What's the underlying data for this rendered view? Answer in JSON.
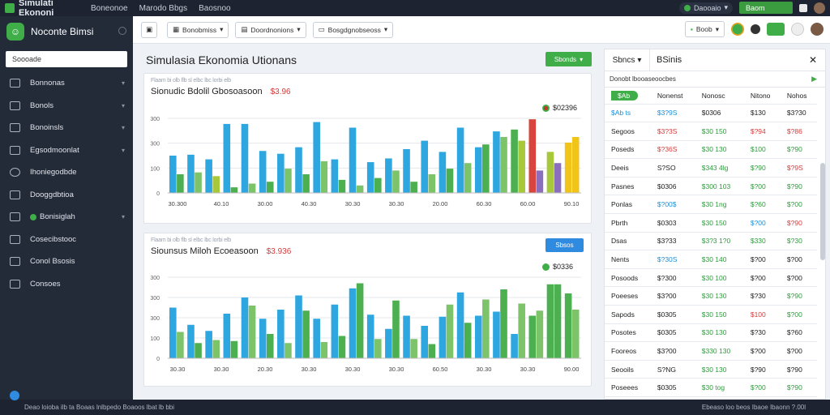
{
  "app": {
    "title": "Simulati Ekononi"
  },
  "top_menu": [
    "Boneonoe",
    "Marodo Bbgs",
    "Baosnoo"
  ],
  "top_right": {
    "status": "Daooaio",
    "button": "Baom"
  },
  "sidebar": {
    "title": "Noconte Bimsi",
    "search_placeholder": "Soooade",
    "items": [
      {
        "label": "Bonnonas"
      },
      {
        "label": "Bonols"
      },
      {
        "label": "Bonoinsls"
      },
      {
        "label": "Egsodmoonlat"
      },
      {
        "label": "Ihoniegodbde"
      },
      {
        "label": "Dooggdbtioa"
      },
      {
        "label": "Bonisiglah"
      },
      {
        "label": "Cosecibstooc"
      },
      {
        "label": "Conol Bsosis"
      },
      {
        "label": "Consoes"
      }
    ]
  },
  "toolbar": {
    "dropdown1": "Bonobmiss",
    "dropdown2": "Doordnonions",
    "dropdown3": "Bosgdgnobseoss",
    "right_pill": "Boob"
  },
  "page": {
    "title": "Simulasia Ekonomia Utionans",
    "action_button": "Sbonds"
  },
  "chart1": {
    "subtitle": "Flaam bi olb flb sl elbc lbc lorbi elb",
    "title": "Sionudic Bdolil Gbosoasoon",
    "title_value": "$3.96",
    "legend_value": "$02396",
    "legend_note": "ĀĀ"
  },
  "chart2": {
    "subtitle": "Flaam bi olb flb sl elbc lbc lorbi elb",
    "title": "Siounsus Miloh Ecoeasoon",
    "title_value": "$3.936",
    "legend_value": "$0336",
    "button": "Sbsos"
  },
  "right_panel": {
    "tab": "Sbncs",
    "title": "BSinis",
    "subheader": "Donobt lbooaseoocbes",
    "header": [
      "$Ab",
      "Nonenst",
      "Nonosc",
      "Nitono",
      "Nohos"
    ],
    "rows": [
      {
        "c1": "$Ab ts",
        "c2": "$3?9S",
        "c3": "$0306",
        "c4": "$130",
        "c5": "$3?30",
        "k1": "blue",
        "k2": "blue",
        "k3": "",
        "k4": "",
        "k5": ""
      },
      {
        "c1": "Segoos",
        "c2": "$3?3S",
        "c3": "$30 150",
        "c4": "$?94",
        "c5": "$?86",
        "k1": "",
        "k2": "red",
        "k3": "green",
        "k4": "red",
        "k5": "red"
      },
      {
        "c1": "Poseds",
        "c2": "$?36S",
        "c3": "$30 130",
        "c4": "$100",
        "c5": "$?90",
        "k1": "",
        "k2": "red",
        "k3": "green",
        "k4": "green",
        "k5": "green"
      },
      {
        "c1": "Deeis",
        "c2": "S?SO",
        "c3": "$343 4lg",
        "c4": "$?90",
        "c5": "$?9S",
        "k1": "",
        "k2": "",
        "k3": "green",
        "k4": "green",
        "k5": "red"
      },
      {
        "c1": "Pasnes",
        "c2": "$0306",
        "c3": "$300 103",
        "c4": "$?00",
        "c5": "$?90",
        "k1": "",
        "k2": "",
        "k3": "green",
        "k4": "green",
        "k5": "green"
      },
      {
        "c1": "Ponlas",
        "c2": "$?00$",
        "c3": "$30 1ng",
        "c4": "$?60",
        "c5": "$?00",
        "k1": "",
        "k2": "blue",
        "k3": "green",
        "k4": "green",
        "k5": "green"
      },
      {
        "c1": "Pbrth",
        "c2": "$0303",
        "c3": "$30 150",
        "c4": "$?00",
        "c5": "$?90",
        "k1": "",
        "k2": "",
        "k3": "green",
        "k4": "blue",
        "k5": "red"
      },
      {
        "c1": "Dsas",
        "c2": "$3?33",
        "c3": "$3?3 1?0",
        "c4": "$330",
        "c5": "$?30",
        "k1": "",
        "k2": "",
        "k3": "green",
        "k4": "green",
        "k5": "green"
      },
      {
        "c1": "Nents",
        "c2": "$?30S",
        "c3": "$30 140",
        "c4": "$?00",
        "c5": "$?00",
        "k1": "",
        "k2": "blue",
        "k3": "green",
        "k4": "",
        "k5": ""
      },
      {
        "c1": "Posoods",
        "c2": "$?300",
        "c3": "$30 100",
        "c4": "$?00",
        "c5": "$?00",
        "k1": "",
        "k2": "",
        "k3": "green",
        "k4": "",
        "k5": ""
      },
      {
        "c1": "Poeeses",
        "c2": "$3?00",
        "c3": "$30 130",
        "c4": "$?30",
        "c5": "$?90",
        "k1": "",
        "k2": "",
        "k3": "green",
        "k4": "",
        "k5": "green"
      },
      {
        "c1": "Sapods",
        "c2": "$0305",
        "c3": "$30 150",
        "c4": "$100",
        "c5": "$?00",
        "k1": "",
        "k2": "",
        "k3": "green",
        "k4": "red",
        "k5": "green"
      },
      {
        "c1": "Posotes",
        "c2": "$0305",
        "c3": "$30 130",
        "c4": "$?30",
        "c5": "$?60",
        "k1": "",
        "k2": "",
        "k3": "green",
        "k4": "",
        "k5": ""
      },
      {
        "c1": "Fooreos",
        "c2": "$3?00",
        "c3": "$330 130",
        "c4": "$?00",
        "c5": "$?00",
        "k1": "",
        "k2": "",
        "k3": "green",
        "k4": "",
        "k5": ""
      },
      {
        "c1": "Seooils",
        "c2": "S?NG",
        "c3": "$30 130",
        "c4": "$?90",
        "c5": "$?90",
        "k1": "",
        "k2": "",
        "k3": "green",
        "k4": "",
        "k5": ""
      },
      {
        "c1": "Poseees",
        "c2": "$0305",
        "c3": "$30 tog",
        "c4": "$?00",
        "c5": "$?90",
        "k1": "",
        "k2": "",
        "k3": "green",
        "k4": "green",
        "k5": "green"
      },
      {
        "c1": "Eoolds",
        "c2": "$0303",
        "c3": "",
        "c4": "",
        "c5": "",
        "k1": "",
        "k2": "",
        "k3": "",
        "k4": "",
        "k5": ""
      }
    ]
  },
  "statusbar": {
    "left": "Deao loioba ilb ta Boaas   lnlbpedo Boaoos lbat lb bbi",
    "right": "Ebeaso loo beos Ibaoe Ibaonn  ?.00l"
  },
  "colors": {
    "blue": "#2ea6e0",
    "green": "#4caf50",
    "lightgreen": "#7cc36a",
    "olive": "#a6c83a",
    "red": "#d9443c",
    "yellow": "#f0c419",
    "purple": "#8b6fbd",
    "gray": "#b0b5bd"
  },
  "chart_data": [
    {
      "type": "bar",
      "title": "Sionudic Bdolil Gbosoasoon",
      "ylim": [
        0,
        400
      ],
      "yticks": [
        "0",
        "100",
        "300",
        "300"
      ],
      "xlabels": [
        "30.300",
        "40.10",
        "30.00",
        "40.30",
        "30.30",
        "30.30",
        "20.00",
        "60.30",
        "60.00",
        "90.10"
      ],
      "groups": [
        [
          {
            "v": 200,
            "c": "blue"
          },
          {
            "v": 100,
            "c": "green"
          }
        ],
        [
          {
            "v": 205,
            "c": "blue"
          },
          {
            "v": 110,
            "c": "lightgreen"
          }
        ],
        [
          {
            "v": 180,
            "c": "blue"
          },
          {
            "v": 90,
            "c": "olive"
          }
        ],
        [
          {
            "v": 370,
            "c": "blue"
          },
          {
            "v": 30,
            "c": "green"
          }
        ],
        [
          {
            "v": 370,
            "c": "blue"
          },
          {
            "v": 50,
            "c": "lightgreen"
          }
        ],
        [
          {
            "v": 225,
            "c": "blue"
          },
          {
            "v": 60,
            "c": "green"
          }
        ],
        [
          {
            "v": 210,
            "c": "blue"
          },
          {
            "v": 130,
            "c": "lightgreen"
          }
        ],
        [
          {
            "v": 245,
            "c": "blue"
          },
          {
            "v": 100,
            "c": "green"
          }
        ],
        [
          {
            "v": 380,
            "c": "blue"
          },
          {
            "v": 170,
            "c": "lightgreen"
          }
        ],
        [
          {
            "v": 180,
            "c": "blue"
          },
          {
            "v": 70,
            "c": "green"
          }
        ],
        [
          {
            "v": 350,
            "c": "blue"
          },
          {
            "v": 40,
            "c": "lightgreen"
          }
        ],
        [
          {
            "v": 165,
            "c": "blue"
          },
          {
            "v": 80,
            "c": "green"
          }
        ],
        [
          {
            "v": 185,
            "c": "blue"
          },
          {
            "v": 120,
            "c": "lightgreen"
          }
        ],
        [
          {
            "v": 235,
            "c": "blue"
          },
          {
            "v": 60,
            "c": "green"
          }
        ],
        [
          {
            "v": 280,
            "c": "blue"
          },
          {
            "v": 100,
            "c": "lightgreen"
          }
        ],
        [
          {
            "v": 220,
            "c": "blue"
          },
          {
            "v": 130,
            "c": "green"
          }
        ],
        [
          {
            "v": 350,
            "c": "blue"
          },
          {
            "v": 160,
            "c": "lightgreen"
          }
        ],
        [
          {
            "v": 245,
            "c": "blue"
          },
          {
            "v": 260,
            "c": "green"
          }
        ],
        [
          {
            "v": 330,
            "c": "blue"
          },
          {
            "v": 300,
            "c": "lightgreen"
          }
        ],
        [
          {
            "v": 340,
            "c": "green"
          },
          {
            "v": 280,
            "c": "olive"
          }
        ],
        [
          {
            "v": 395,
            "c": "red"
          },
          {
            "v": 120,
            "c": "purple"
          }
        ],
        [
          {
            "v": 220,
            "c": "olive"
          },
          {
            "v": 160,
            "c": "purple"
          }
        ],
        [
          {
            "v": 270,
            "c": "yellow"
          },
          {
            "v": 300,
            "c": "yellow"
          }
        ]
      ]
    },
    {
      "type": "bar",
      "title": "Siounsus Miloh Ecoeasoon",
      "ylim": [
        0,
        400
      ],
      "yticks": [
        "0",
        "100",
        "300",
        "300",
        "300"
      ],
      "xlabels": [
        "30.30",
        "30.30",
        "20.30",
        "30.30",
        "30.30",
        "30.30",
        "60.50",
        "30.30",
        "30.30",
        "90.00"
      ],
      "groups": [
        [
          {
            "v": 250,
            "c": "blue"
          },
          {
            "v": 130,
            "c": "lightgreen"
          }
        ],
        [
          {
            "v": 165,
            "c": "blue"
          },
          {
            "v": 75,
            "c": "green"
          }
        ],
        [
          {
            "v": 135,
            "c": "blue"
          },
          {
            "v": 90,
            "c": "lightgreen"
          }
        ],
        [
          {
            "v": 220,
            "c": "blue"
          },
          {
            "v": 85,
            "c": "green"
          }
        ],
        [
          {
            "v": 300,
            "c": "blue"
          },
          {
            "v": 260,
            "c": "lightgreen"
          }
        ],
        [
          {
            "v": 195,
            "c": "blue"
          },
          {
            "v": 120,
            "c": "green"
          }
        ],
        [
          {
            "v": 240,
            "c": "blue"
          },
          {
            "v": 75,
            "c": "lightgreen"
          }
        ],
        [
          {
            "v": 310,
            "c": "blue"
          },
          {
            "v": 235,
            "c": "green"
          }
        ],
        [
          {
            "v": 195,
            "c": "blue"
          },
          {
            "v": 80,
            "c": "lightgreen"
          }
        ],
        [
          {
            "v": 265,
            "c": "blue"
          },
          {
            "v": 110,
            "c": "green"
          }
        ],
        [
          {
            "v": 345,
            "c": "blue"
          },
          {
            "v": 370,
            "c": "green"
          }
        ],
        [
          {
            "v": 215,
            "c": "blue"
          },
          {
            "v": 95,
            "c": "lightgreen"
          }
        ],
        [
          {
            "v": 145,
            "c": "blue"
          },
          {
            "v": 285,
            "c": "green"
          }
        ],
        [
          {
            "v": 210,
            "c": "blue"
          },
          {
            "v": 95,
            "c": "lightgreen"
          }
        ],
        [
          {
            "v": 160,
            "c": "blue"
          },
          {
            "v": 70,
            "c": "green"
          }
        ],
        [
          {
            "v": 205,
            "c": "blue"
          },
          {
            "v": 265,
            "c": "lightgreen"
          }
        ],
        [
          {
            "v": 325,
            "c": "blue"
          },
          {
            "v": 175,
            "c": "green"
          }
        ],
        [
          {
            "v": 210,
            "c": "blue"
          },
          {
            "v": 290,
            "c": "lightgreen"
          }
        ],
        [
          {
            "v": 230,
            "c": "blue"
          },
          {
            "v": 340,
            "c": "green"
          }
        ],
        [
          {
            "v": 120,
            "c": "blue"
          },
          {
            "v": 270,
            "c": "lightgreen"
          }
        ],
        [
          {
            "v": 210,
            "c": "green"
          },
          {
            "v": 235,
            "c": "lightgreen"
          }
        ],
        [
          {
            "v": 365,
            "c": "green"
          },
          {
            "v": 365,
            "c": "green"
          }
        ],
        [
          {
            "v": 320,
            "c": "green"
          },
          {
            "v": 240,
            "c": "lightgreen"
          }
        ]
      ]
    }
  ]
}
